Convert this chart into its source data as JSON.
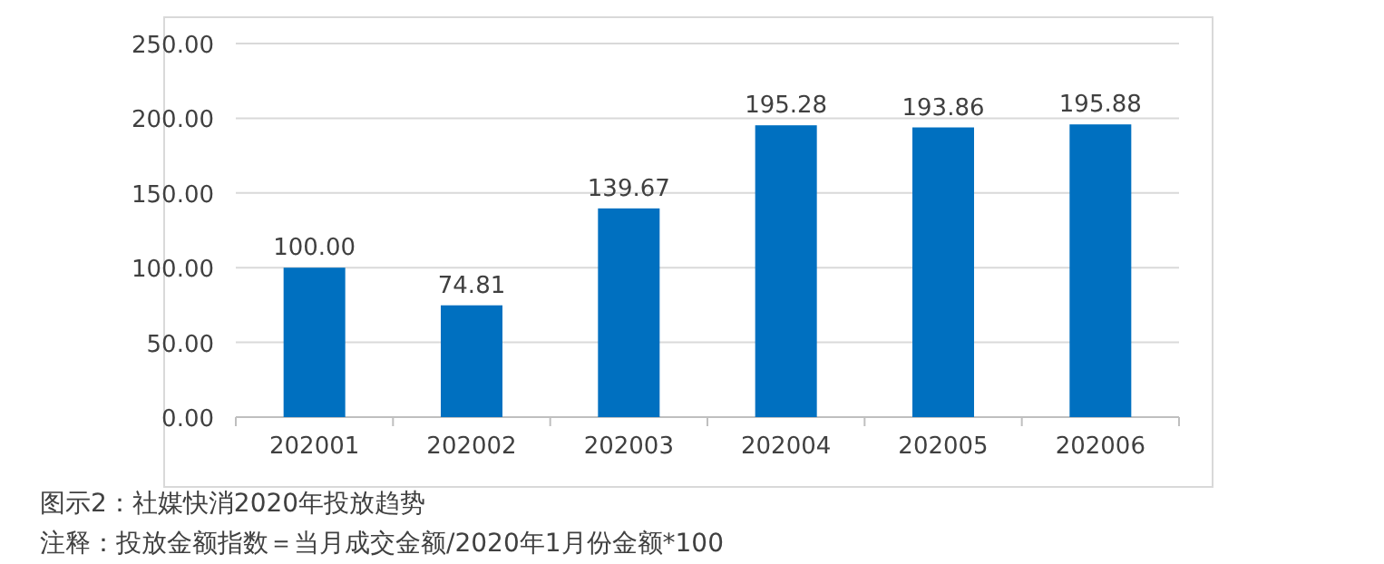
{
  "chart_data": {
    "type": "bar",
    "categories": [
      "202001",
      "202002",
      "202003",
      "202004",
      "202005",
      "202006"
    ],
    "values": [
      100.0,
      74.81,
      139.67,
      195.28,
      193.86,
      195.88
    ],
    "value_labels": [
      "100.00",
      "74.81",
      "139.67",
      "195.28",
      "193.86",
      "195.88"
    ],
    "color": "#0070c0",
    "ylim": [
      0,
      250
    ],
    "yticks": [
      {
        "value": 0,
        "label": "0.00"
      },
      {
        "value": 50,
        "label": "50.00"
      },
      {
        "value": 100,
        "label": "100.00"
      },
      {
        "value": 150,
        "label": "150.00"
      },
      {
        "value": 200,
        "label": "200.00"
      },
      {
        "value": 250,
        "label": "250.00"
      }
    ],
    "grid": "y",
    "annotations": [
      "图示2：社媒快消2020年投放趋势",
      "注释：投放金额指数＝当月成交金额/2020年1月份金额*100"
    ]
  }
}
